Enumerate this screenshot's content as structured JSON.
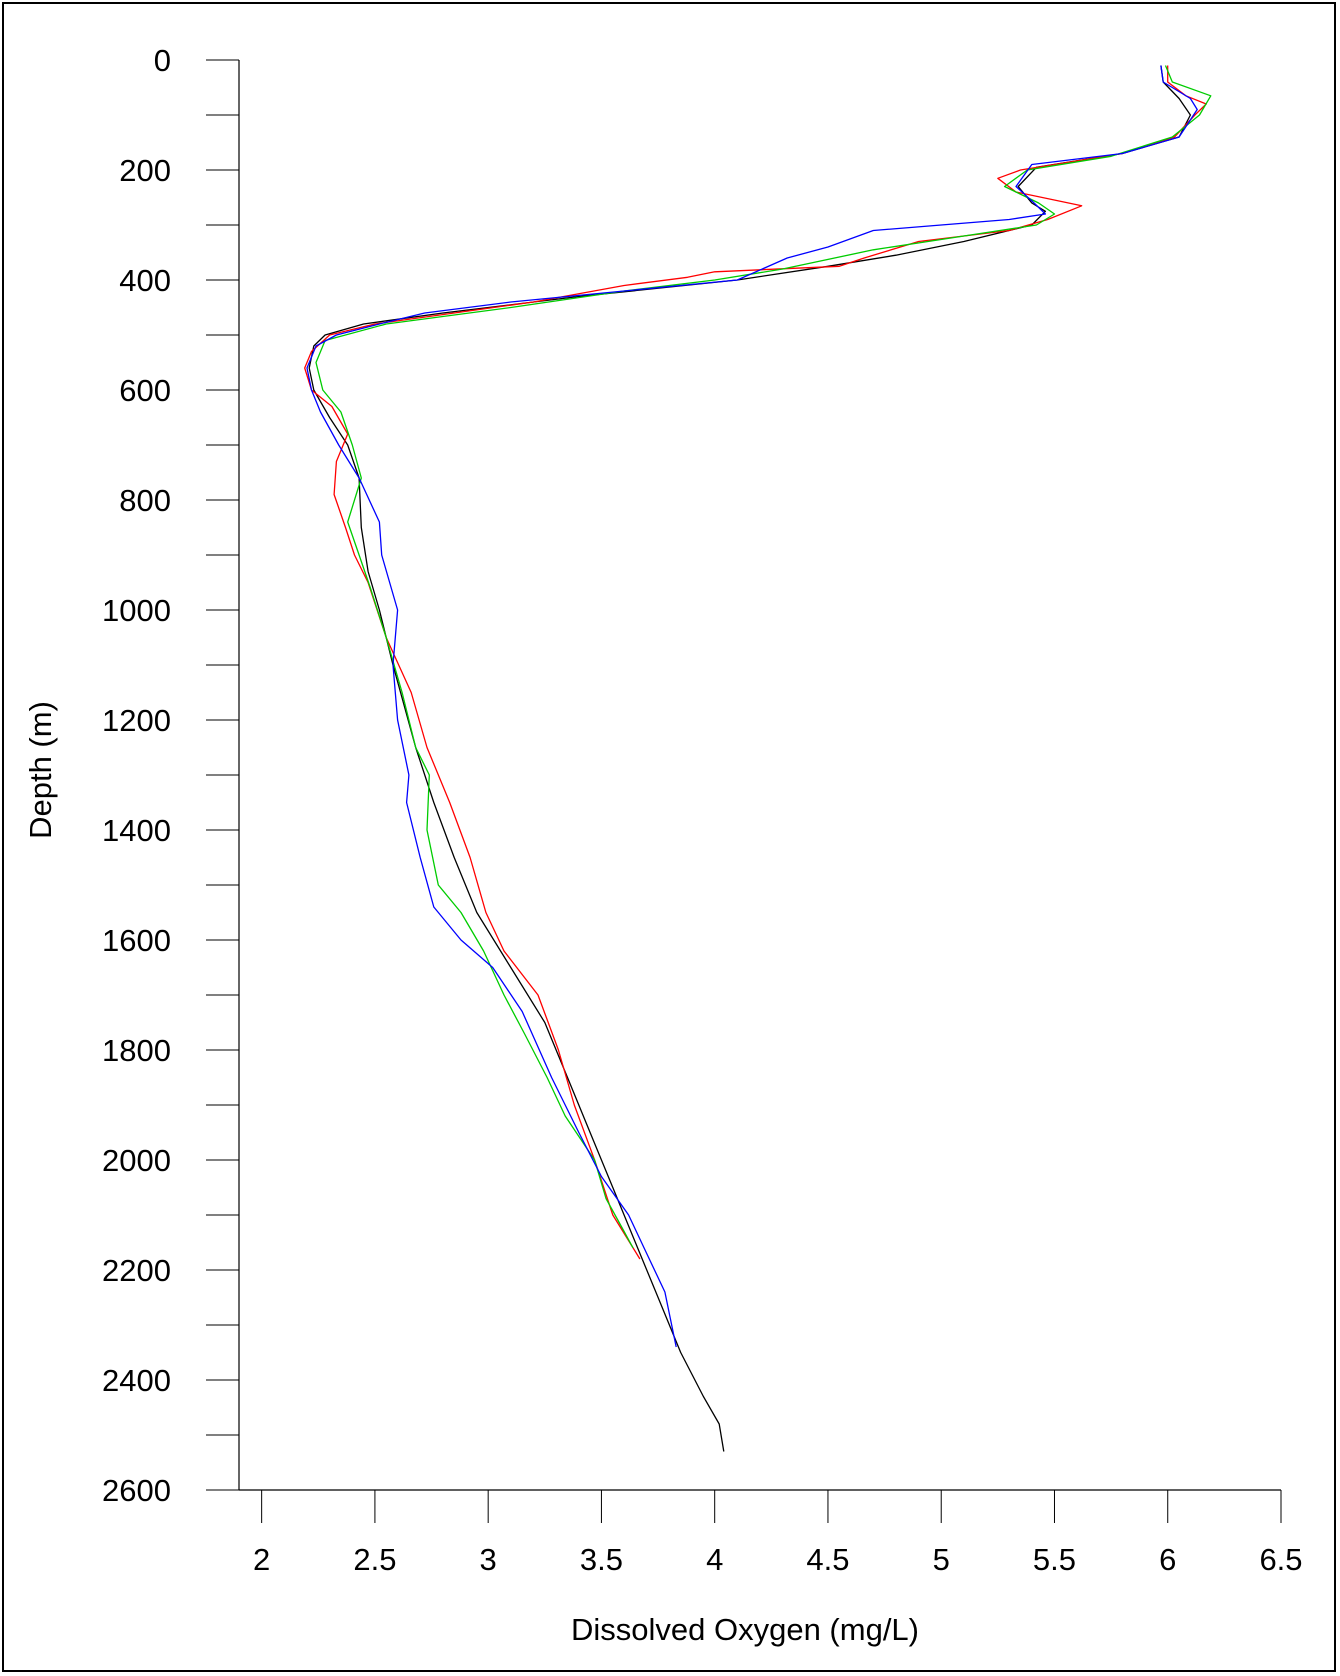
{
  "chart_data": {
    "type": "line",
    "title": "",
    "xlabel": "Dissolved Oxygen (mg/L)",
    "ylabel": "Depth (m)",
    "xlim": [
      1.9,
      6.5
    ],
    "ylim": [
      0,
      2600
    ],
    "y_inverted": true,
    "x_ticks": [
      "2",
      "2.5",
      "3",
      "3.5",
      "4",
      "4.5",
      "5",
      "5.5",
      "6",
      "6.5"
    ],
    "y_ticks": [
      "0",
      "200",
      "400",
      "600",
      "800",
      "1000",
      "1200",
      "1400",
      "1600",
      "1800",
      "2000",
      "2200",
      "2400",
      "2600"
    ],
    "grid": false,
    "legend": null,
    "series": [
      {
        "color": "#000000",
        "points": [
          [
            5.97,
            10
          ],
          [
            5.98,
            40
          ],
          [
            6.05,
            70
          ],
          [
            6.1,
            100
          ],
          [
            6.05,
            140
          ],
          [
            5.8,
            170
          ],
          [
            5.42,
            195
          ],
          [
            5.34,
            230
          ],
          [
            5.4,
            260
          ],
          [
            5.46,
            275
          ],
          [
            5.4,
            300
          ],
          [
            5.1,
            330
          ],
          [
            4.8,
            355
          ],
          [
            4.5,
            375
          ],
          [
            4.1,
            400
          ],
          [
            3.4,
            430
          ],
          [
            2.8,
            460
          ],
          [
            2.45,
            480
          ],
          [
            2.28,
            500
          ],
          [
            2.23,
            520
          ],
          [
            2.21,
            560
          ],
          [
            2.23,
            600
          ],
          [
            2.3,
            650
          ],
          [
            2.38,
            700
          ],
          [
            2.43,
            760
          ],
          [
            2.44,
            850
          ],
          [
            2.47,
            930
          ],
          [
            2.52,
            1000
          ],
          [
            2.58,
            1100
          ],
          [
            2.68,
            1250
          ],
          [
            2.76,
            1350
          ],
          [
            2.85,
            1450
          ],
          [
            2.95,
            1550
          ],
          [
            3.1,
            1650
          ],
          [
            3.25,
            1750
          ],
          [
            3.35,
            1850
          ],
          [
            3.45,
            1950
          ],
          [
            3.55,
            2050
          ],
          [
            3.65,
            2150
          ],
          [
            3.75,
            2250
          ],
          [
            3.85,
            2350
          ],
          [
            3.95,
            2430
          ],
          [
            4.02,
            2480
          ],
          [
            4.04,
            2530
          ]
        ]
      },
      {
        "color": "#ff0000",
        "points": [
          [
            6.0,
            10
          ],
          [
            6.0,
            40
          ],
          [
            6.08,
            65
          ],
          [
            6.17,
            80
          ],
          [
            6.12,
            100
          ],
          [
            6.03,
            140
          ],
          [
            5.8,
            170
          ],
          [
            5.35,
            200
          ],
          [
            5.25,
            215
          ],
          [
            5.33,
            240
          ],
          [
            5.62,
            265
          ],
          [
            5.47,
            290
          ],
          [
            5.3,
            310
          ],
          [
            4.9,
            330
          ],
          [
            4.66,
            360
          ],
          [
            4.55,
            375
          ],
          [
            4.0,
            385
          ],
          [
            3.88,
            395
          ],
          [
            3.6,
            410
          ],
          [
            3.2,
            440
          ],
          [
            2.85,
            460
          ],
          [
            2.5,
            480
          ],
          [
            2.3,
            500
          ],
          [
            2.22,
            530
          ],
          [
            2.19,
            560
          ],
          [
            2.22,
            600
          ],
          [
            2.31,
            630
          ],
          [
            2.38,
            680
          ],
          [
            2.33,
            730
          ],
          [
            2.32,
            790
          ],
          [
            2.37,
            850
          ],
          [
            2.41,
            900
          ],
          [
            2.47,
            950
          ],
          [
            2.55,
            1050
          ],
          [
            2.66,
            1150
          ],
          [
            2.73,
            1250
          ],
          [
            2.83,
            1350
          ],
          [
            2.92,
            1450
          ],
          [
            2.99,
            1550
          ],
          [
            3.07,
            1620
          ],
          [
            3.22,
            1700
          ],
          [
            3.31,
            1800
          ],
          [
            3.38,
            1900
          ],
          [
            3.47,
            2000
          ],
          [
            3.55,
            2100
          ],
          [
            3.67,
            2180
          ]
        ]
      },
      {
        "color": "#00cc00",
        "points": [
          [
            5.99,
            10
          ],
          [
            6.02,
            40
          ],
          [
            6.19,
            65
          ],
          [
            6.14,
            100
          ],
          [
            6.02,
            140
          ],
          [
            5.75,
            175
          ],
          [
            5.38,
            200
          ],
          [
            5.28,
            230
          ],
          [
            5.43,
            260
          ],
          [
            5.5,
            280
          ],
          [
            5.42,
            300
          ],
          [
            5.1,
            320
          ],
          [
            4.7,
            345
          ],
          [
            4.3,
            380
          ],
          [
            4.0,
            400
          ],
          [
            3.6,
            420
          ],
          [
            3.1,
            450
          ],
          [
            2.55,
            480
          ],
          [
            2.28,
            510
          ],
          [
            2.24,
            550
          ],
          [
            2.27,
            600
          ],
          [
            2.35,
            640
          ],
          [
            2.4,
            700
          ],
          [
            2.44,
            760
          ],
          [
            2.38,
            840
          ],
          [
            2.43,
            900
          ],
          [
            2.48,
            960
          ],
          [
            2.55,
            1050
          ],
          [
            2.62,
            1150
          ],
          [
            2.68,
            1250
          ],
          [
            2.74,
            1300
          ],
          [
            2.73,
            1400
          ],
          [
            2.78,
            1500
          ],
          [
            2.88,
            1550
          ],
          [
            2.98,
            1620
          ],
          [
            3.07,
            1700
          ],
          [
            3.16,
            1770
          ],
          [
            3.26,
            1850
          ],
          [
            3.34,
            1920
          ],
          [
            3.47,
            2000
          ],
          [
            3.52,
            2070
          ],
          [
            3.6,
            2130
          ],
          [
            3.64,
            2160
          ]
        ]
      },
      {
        "color": "#0000ff",
        "points": [
          [
            5.97,
            10
          ],
          [
            5.98,
            40
          ],
          [
            6.1,
            70
          ],
          [
            6.13,
            90
          ],
          [
            6.05,
            140
          ],
          [
            5.8,
            170
          ],
          [
            5.4,
            190
          ],
          [
            5.33,
            230
          ],
          [
            5.41,
            260
          ],
          [
            5.46,
            280
          ],
          [
            5.3,
            290
          ],
          [
            5.0,
            300
          ],
          [
            4.7,
            310
          ],
          [
            4.5,
            340
          ],
          [
            4.32,
            360
          ],
          [
            4.1,
            400
          ],
          [
            3.6,
            420
          ],
          [
            3.1,
            440
          ],
          [
            2.72,
            460
          ],
          [
            2.52,
            480
          ],
          [
            2.33,
            500
          ],
          [
            2.24,
            520
          ],
          [
            2.2,
            560
          ],
          [
            2.22,
            600
          ],
          [
            2.26,
            640
          ],
          [
            2.34,
            700
          ],
          [
            2.43,
            760
          ],
          [
            2.52,
            840
          ],
          [
            2.53,
            900
          ],
          [
            2.6,
            1000
          ],
          [
            2.58,
            1100
          ],
          [
            2.6,
            1200
          ],
          [
            2.65,
            1300
          ],
          [
            2.64,
            1350
          ],
          [
            2.7,
            1450
          ],
          [
            2.76,
            1540
          ],
          [
            2.88,
            1600
          ],
          [
            3.02,
            1650
          ],
          [
            3.15,
            1730
          ],
          [
            3.28,
            1850
          ],
          [
            3.4,
            1950
          ],
          [
            3.5,
            2030
          ],
          [
            3.62,
            2100
          ],
          [
            3.7,
            2170
          ],
          [
            3.78,
            2240
          ],
          [
            3.8,
            2280
          ],
          [
            3.83,
            2340
          ]
        ]
      }
    ]
  }
}
